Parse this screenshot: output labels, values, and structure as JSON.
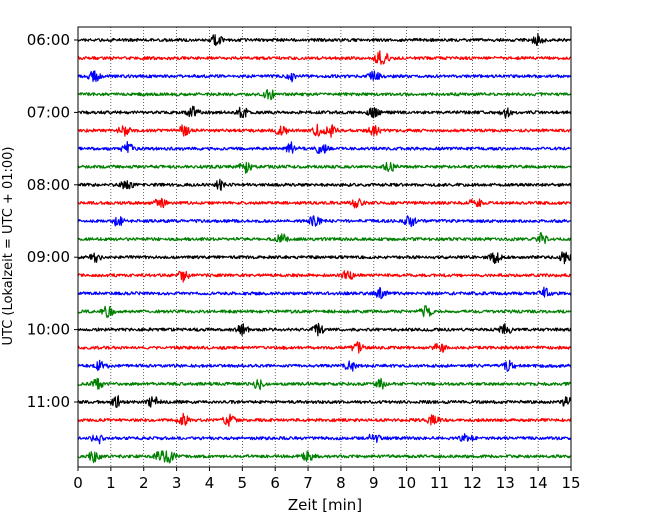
{
  "chart_data": {
    "type": "line",
    "subtype": "helicorder-seismogram",
    "xlabel": "Zeit  [min]",
    "ylabel": "UTC (Lokalzeit = UTC + 01:00)",
    "xlim": [
      0,
      15
    ],
    "x_ticks": [
      "0",
      "1",
      "2",
      "3",
      "4",
      "5",
      "6",
      "7",
      "8",
      "9",
      "10",
      "11",
      "12",
      "13",
      "14",
      "15"
    ],
    "row_interval_min": 15,
    "y_ticks": [
      {
        "row": 0,
        "label": "06:00"
      },
      {
        "row": 4,
        "label": "07:00"
      },
      {
        "row": 8,
        "label": "08:00"
      },
      {
        "row": 12,
        "label": "09:00"
      },
      {
        "row": 16,
        "label": "10:00"
      },
      {
        "row": 20,
        "label": "11:00"
      }
    ],
    "grid": "vertical dotted at each minute",
    "trace_colors": [
      "#000000",
      "#ff0000",
      "#0000ff",
      "#008000"
    ],
    "traces": [
      {
        "start": "06:00",
        "bursts_min": [
          4.2,
          14.0
        ]
      },
      {
        "start": "06:15",
        "bursts_min": [
          9.1,
          9.3
        ]
      },
      {
        "start": "06:30",
        "bursts_min": [
          0.5,
          6.5,
          9.0
        ]
      },
      {
        "start": "06:45",
        "bursts_min": [
          5.8
        ]
      },
      {
        "start": "07:00",
        "bursts_min": [
          3.5,
          5.0,
          9.0,
          13.0
        ]
      },
      {
        "start": "07:15",
        "bursts_min": [
          1.4,
          3.2,
          6.2,
          7.3,
          7.7,
          9.0
        ]
      },
      {
        "start": "07:30",
        "bursts_min": [
          1.5,
          6.5,
          7.4
        ]
      },
      {
        "start": "07:45",
        "bursts_min": [
          5.1,
          9.5
        ]
      },
      {
        "start": "08:00",
        "bursts_min": [
          1.5,
          4.3
        ]
      },
      {
        "start": "08:15",
        "bursts_min": [
          2.5,
          8.5,
          12.1
        ]
      },
      {
        "start": "08:30",
        "bursts_min": [
          1.2,
          7.2,
          10.1
        ]
      },
      {
        "start": "08:45",
        "bursts_min": [
          6.2,
          14.1
        ]
      },
      {
        "start": "09:00",
        "bursts_min": [
          0.5,
          12.7,
          14.8
        ]
      },
      {
        "start": "09:15",
        "bursts_min": [
          3.2,
          8.2
        ]
      },
      {
        "start": "09:30",
        "bursts_min": [
          9.2,
          14.2
        ]
      },
      {
        "start": "09:45",
        "bursts_min": [
          0.9,
          10.6
        ]
      },
      {
        "start": "10:00",
        "bursts_min": [
          5.0,
          7.3,
          13.0
        ]
      },
      {
        "start": "10:15",
        "bursts_min": [
          8.5,
          11.0
        ]
      },
      {
        "start": "10:30",
        "bursts_min": [
          0.7,
          8.3,
          13.1
        ]
      },
      {
        "start": "10:45",
        "bursts_min": [
          0.6,
          5.5,
          9.2
        ]
      },
      {
        "start": "11:00",
        "bursts_min": [
          1.2,
          2.3,
          14.9
        ]
      },
      {
        "start": "11:15",
        "bursts_min": [
          3.2,
          4.6,
          10.8
        ]
      },
      {
        "start": "11:30",
        "bursts_min": [
          0.6,
          9.0,
          11.8
        ]
      },
      {
        "start": "11:45",
        "bursts_min": [
          0.5,
          2.5,
          2.8,
          7.0
        ]
      }
    ]
  }
}
